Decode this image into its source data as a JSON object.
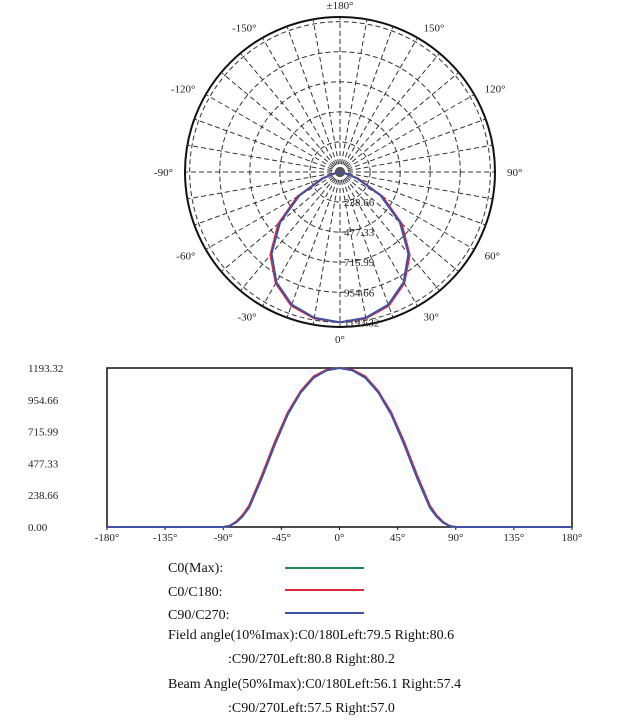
{
  "chart_data": [
    {
      "type": "polar",
      "angle_labels": [
        "±180°",
        "150°",
        "120°",
        "90°",
        "60°",
        "30°",
        "0°",
        "-30°",
        "-60°",
        "-90°",
        "-120°",
        "-150°"
      ],
      "radial_labels": [
        "238.66",
        "477.33",
        "715.99",
        "954.66",
        "1193.32"
      ],
      "rmax": 1193.32,
      "grid": true,
      "series": [
        {
          "color": "#dd2a3a",
          "angles": [
            -90,
            -80,
            -70,
            -60,
            -50,
            -40,
            -30,
            -20,
            -10,
            0,
            10,
            20,
            30,
            40,
            50,
            60,
            70,
            80,
            90
          ],
          "values": [
            0,
            30,
            150,
            390,
            640,
            860,
            1020,
            1130,
            1180,
            1193.32,
            1180,
            1130,
            1020,
            860,
            640,
            390,
            150,
            30,
            0
          ]
        },
        {
          "color": "#3f52a3",
          "angles": [
            -90,
            -80,
            -70,
            -60,
            -50,
            -40,
            -30,
            -20,
            -10,
            0,
            10,
            20,
            30,
            40,
            50,
            60,
            70,
            80,
            90
          ],
          "values": [
            0,
            25,
            140,
            370,
            620,
            845,
            1010,
            1120,
            1175,
            1193.32,
            1175,
            1120,
            1010,
            845,
            620,
            370,
            140,
            25,
            0
          ]
        }
      ]
    },
    {
      "type": "line",
      "xlim": [
        -180,
        180
      ],
      "ylim": [
        0,
        1193.32
      ],
      "x_ticks": [
        "-180°",
        "-135°",
        "-90°",
        "-45°",
        "0°",
        "45°",
        "90°",
        "135°",
        "180°"
      ],
      "y_ticks": [
        "0.00",
        "238.66",
        "477.33",
        "715.99",
        "954.66",
        "1193.32"
      ],
      "series": [
        {
          "color": "#dd2a3a",
          "x": [
            -180,
            -90,
            -85,
            -80,
            -75,
            -70,
            -60,
            -50,
            -40,
            -30,
            -20,
            -10,
            0,
            10,
            20,
            30,
            40,
            50,
            60,
            70,
            75,
            80,
            85,
            90,
            180
          ],
          "y": [
            0,
            0,
            10,
            40,
            90,
            160,
            390,
            640,
            860,
            1020,
            1130,
            1180,
            1193.32,
            1180,
            1130,
            1020,
            860,
            640,
            390,
            160,
            90,
            40,
            10,
            0,
            0
          ]
        },
        {
          "color": "#3f52a3",
          "x": [
            -180,
            -90,
            -85,
            -80,
            -75,
            -70,
            -60,
            -50,
            -40,
            -30,
            -20,
            -10,
            0,
            10,
            20,
            30,
            40,
            50,
            60,
            70,
            75,
            80,
            85,
            90,
            180
          ],
          "y": [
            0,
            0,
            8,
            35,
            80,
            145,
            370,
            620,
            845,
            1010,
            1120,
            1175,
            1193.32,
            1175,
            1120,
            1010,
            845,
            620,
            370,
            145,
            80,
            35,
            8,
            0,
            0
          ]
        }
      ]
    }
  ],
  "legend": [
    {
      "label": "C0(Max):",
      "color": "#1a8a5a"
    },
    {
      "label": "C0/C180:",
      "color": "#dd2a3a"
    },
    {
      "label": "C90/C270:",
      "color": "#3f52a3"
    }
  ],
  "info": {
    "field_c0": "Field angle(10%Imax):C0/180Left:79.5 Right:80.6",
    "field_c90": ":C90/270Left:80.8 Right:80.2",
    "beam_c0": "Beam Angle(50%Imax):C0/180Left:56.1 Right:57.4",
    "beam_c90": ":C90/270Left:57.5 Right:57.0"
  }
}
